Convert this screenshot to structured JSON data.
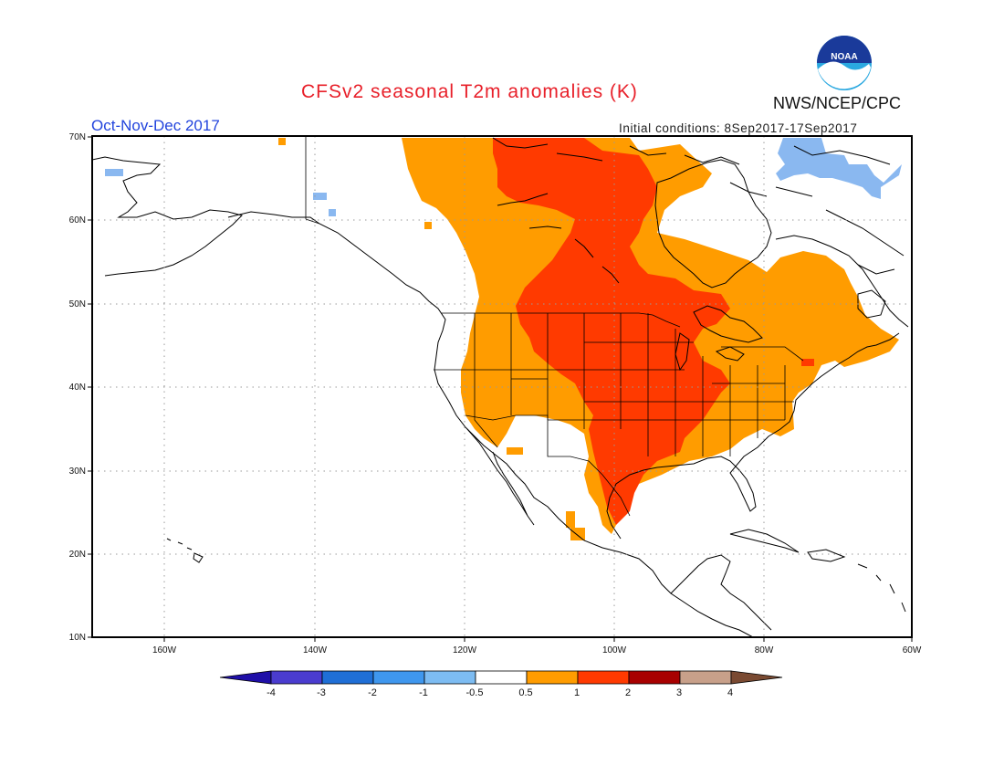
{
  "title": "CFSv2 seasonal T2m anomalies (K)",
  "agency": "NWS/NCEP/CPC",
  "logo_text": "NOAA",
  "period": "Oct-Nov-Dec 2017",
  "initial_conditions": "Initial conditions: 8Sep2017-17Sep2017",
  "lat_labels": [
    "70N",
    "60N",
    "50N",
    "40N",
    "30N",
    "20N",
    "10N"
  ],
  "lon_labels": [
    "160W",
    "140W",
    "120W",
    "100W",
    "80W",
    "60W"
  ],
  "colorbar": {
    "tick_labels": [
      "-4",
      "-3",
      "-2",
      "-1",
      "-0.5",
      "0.5",
      "1",
      "2",
      "3",
      "4"
    ],
    "colors": [
      "#1f0fa8",
      "#4a3ccf",
      "#1f6fd6",
      "#3f97ee",
      "#7dbcf2",
      "#ffffff",
      "#ff9c00",
      "#ff3a00",
      "#a80000",
      "#c8a08a",
      "#7a4a32"
    ]
  },
  "legend_colors": {
    "light_blue": "#8ab8f0",
    "orange": "#ff9c00",
    "red_orange": "#ff3a00",
    "dark_red": "#c80000"
  }
}
